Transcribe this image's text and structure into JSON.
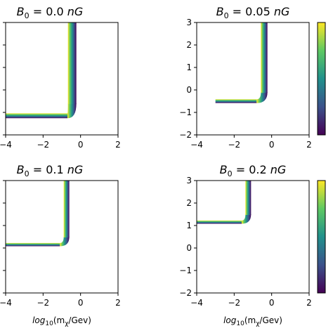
{
  "figure": {
    "xlabel": "log10(mχ/Gev)",
    "xlabel_parts": {
      "base": "log",
      "sub1": "10",
      "mid": "(m",
      "sub2": "χ",
      "tail": "/Gev)"
    }
  },
  "chart_data": [
    {
      "type": "heatmap",
      "title": "B0 = 0.0 nG",
      "title_parts": {
        "sym": "B",
        "sub": "0",
        "eq": " = 0.0 ",
        "unit": "nG"
      },
      "xlim": [
        -4,
        2
      ],
      "ylim": [
        -2,
        3
      ],
      "xticks": [
        -4,
        -2,
        0,
        2
      ],
      "yticks": [],
      "horizontal_branch": {
        "y": -1.15,
        "x_from": -4,
        "x_to": -0.7
      },
      "vertical_branch": {
        "x": -0.45,
        "y_from": -0.6,
        "y_to": 3
      },
      "band_width": 0.9,
      "colorbar": false
    },
    {
      "type": "heatmap",
      "title": "B0 = 0.05 nG",
      "title_parts": {
        "sym": "B",
        "sub": "0",
        "eq": " = 0.05 ",
        "unit": "nG"
      },
      "xlim": [
        -4,
        2
      ],
      "ylim": [
        -2,
        3
      ],
      "xticks": [
        -4,
        -2,
        0,
        2
      ],
      "yticks": [
        -2,
        -1,
        0,
        1,
        2,
        3
      ],
      "horizontal_branch": {
        "y": -0.5,
        "x_from": -3.0,
        "x_to": -0.8
      },
      "vertical_branch": {
        "x": -0.4,
        "y_from": -0.1,
        "y_to": 3
      },
      "band_width": 0.7,
      "colorbar": true
    },
    {
      "type": "heatmap",
      "title": "B0 = 0.1 nG",
      "title_parts": {
        "sym": "B",
        "sub": "0",
        "eq": " = 0.1 ",
        "unit": "nG"
      },
      "xlim": [
        -4,
        2
      ],
      "ylim": [
        -2,
        3
      ],
      "xticks": [
        -4,
        -2,
        0,
        2
      ],
      "yticks": [],
      "horizontal_branch": {
        "y": 0.15,
        "x_from": -4,
        "x_to": -1.1
      },
      "vertical_branch": {
        "x": -0.75,
        "y_from": 0.5,
        "y_to": 3
      },
      "band_width": 0.6,
      "colorbar": false
    },
    {
      "type": "heatmap",
      "title": "B0 = 0.2 nG",
      "title_parts": {
        "sym": "B",
        "sub": "0",
        "eq": " = 0.2 ",
        "unit": "nG"
      },
      "xlim": [
        -4,
        2
      ],
      "ylim": [
        -2,
        3
      ],
      "xticks": [
        -4,
        -2,
        0,
        2
      ],
      "yticks": [
        -2,
        -1,
        0,
        1,
        2,
        3
      ],
      "horizontal_branch": {
        "y": 1.15,
        "x_from": -4,
        "x_to": -1.6
      },
      "vertical_branch": {
        "x": -1.25,
        "y_from": 1.5,
        "y_to": 3
      },
      "band_width": 0.6,
      "colorbar": true
    }
  ],
  "colors": {
    "viridis": [
      "#440154",
      "#3b528b",
      "#21918c",
      "#5ec962",
      "#fde725"
    ]
  }
}
